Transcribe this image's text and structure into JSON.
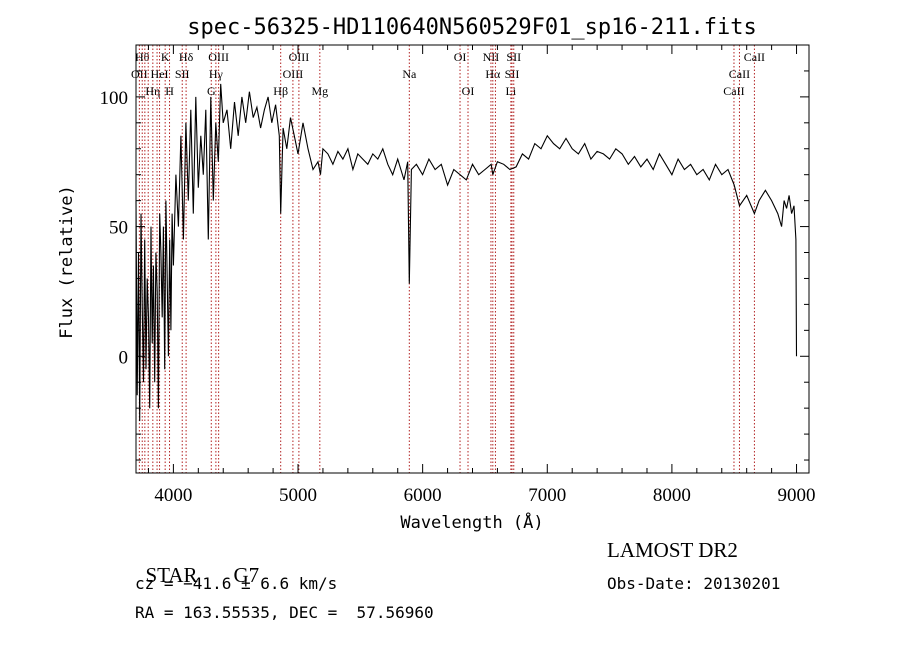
{
  "chart_data": {
    "type": "line",
    "title": "spec-56325-HD110640N560529F01_sp16-211.fits",
    "xlabel": "Wavelength (Å)",
    "ylabel": "Flux (relative)",
    "xlim": [
      3700,
      9100
    ],
    "ylim": [
      -45,
      120
    ],
    "x_ticks": [
      4000,
      5000,
      6000,
      7000,
      8000,
      9000
    ],
    "y_ticks": [
      0,
      50,
      100
    ],
    "grid": false,
    "legend": "none",
    "line_color": "#000000",
    "marker_color": "#b22222",
    "series": [
      {
        "x": [
          3700,
          3710,
          3720,
          3730,
          3740,
          3750,
          3760,
          3770,
          3780,
          3790,
          3800,
          3810,
          3820,
          3830,
          3840,
          3850,
          3860,
          3870,
          3880,
          3890,
          3900,
          3910,
          3920,
          3930,
          3940,
          3950,
          3960,
          3970,
          3980,
          3990,
          4000,
          4020,
          4040,
          4060,
          4080,
          4100,
          4120,
          4140,
          4160,
          4180,
          4200,
          4220,
          4240,
          4260,
          4280,
          4300,
          4320,
          4340,
          4360,
          4380,
          4400,
          4430,
          4460,
          4490,
          4520,
          4550,
          4580,
          4610,
          4640,
          4670,
          4700,
          4730,
          4760,
          4790,
          4820,
          4850,
          4861,
          4880,
          4910,
          4940,
          4970,
          5000,
          5040,
          5080,
          5120,
          5160,
          5180,
          5200,
          5240,
          5280,
          5320,
          5360,
          5400,
          5440,
          5480,
          5520,
          5560,
          5600,
          5640,
          5680,
          5720,
          5760,
          5800,
          5850,
          5880,
          5893,
          5910,
          5950,
          6000,
          6050,
          6100,
          6150,
          6200,
          6250,
          6300,
          6350,
          6400,
          6450,
          6500,
          6550,
          6563,
          6600,
          6650,
          6700,
          6750,
          6800,
          6850,
          6900,
          6950,
          7000,
          7050,
          7100,
          7150,
          7200,
          7250,
          7300,
          7350,
          7400,
          7450,
          7500,
          7550,
          7600,
          7650,
          7700,
          7750,
          7800,
          7850,
          7900,
          7950,
          8000,
          8050,
          8100,
          8150,
          8200,
          8250,
          8300,
          8350,
          8400,
          8450,
          8500,
          8542,
          8600,
          8662,
          8700,
          8750,
          8800,
          8850,
          8880,
          8900,
          8920,
          8940,
          8960,
          8980,
          8995,
          9000
        ],
        "y": [
          60,
          -15,
          40,
          -25,
          55,
          20,
          -10,
          45,
          -5,
          30,
          15,
          -20,
          50,
          5,
          35,
          -10,
          40,
          25,
          -20,
          55,
          40,
          15,
          50,
          -5,
          60,
          30,
          0,
          45,
          10,
          55,
          35,
          70,
          50,
          85,
          45,
          90,
          60,
          95,
          55,
          100,
          65,
          85,
          70,
          95,
          45,
          100,
          60,
          90,
          75,
          105,
          90,
          95,
          80,
          98,
          85,
          100,
          90,
          102,
          92,
          96,
          88,
          95,
          100,
          90,
          97,
          85,
          55,
          88,
          80,
          92,
          85,
          78,
          90,
          80,
          72,
          75,
          70,
          80,
          78,
          74,
          79,
          76,
          80,
          72,
          78,
          76,
          74,
          78,
          76,
          80,
          74,
          70,
          76,
          68,
          75,
          28,
          72,
          74,
          70,
          76,
          72,
          74,
          66,
          72,
          70,
          68,
          74,
          70,
          72,
          74,
          70,
          75,
          74,
          72,
          73,
          78,
          76,
          82,
          80,
          85,
          82,
          80,
          84,
          80,
          78,
          82,
          76,
          79,
          78,
          76,
          80,
          78,
          74,
          77,
          73,
          76,
          72,
          78,
          74,
          70,
          76,
          72,
          74,
          70,
          72,
          68,
          74,
          70,
          72,
          66,
          58,
          62,
          55,
          60,
          64,
          60,
          55,
          50,
          60,
          57,
          62,
          55,
          58,
          45,
          0
        ]
      }
    ],
    "lines": [
      {
        "x": 3727,
        "label": "OII",
        "row": 2
      },
      {
        "x": 3750,
        "label": "Hθ",
        "row": 1
      },
      {
        "x": 3771,
        "label": "",
        "row": 0
      },
      {
        "x": 3798,
        "label": "",
        "row": 0
      },
      {
        "x": 3835,
        "label": "Hη",
        "row": 3
      },
      {
        "x": 3869,
        "label": "",
        "row": 0
      },
      {
        "x": 3889,
        "label": "HeI",
        "row": 2
      },
      {
        "x": 3934,
        "label": "K",
        "row": 1
      },
      {
        "x": 3969,
        "label": "H",
        "row": 3
      },
      {
        "x": 4071,
        "label": "SII",
        "row": 2
      },
      {
        "x": 4102,
        "label": "Hδ",
        "row": 1
      },
      {
        "x": 4304,
        "label": "G",
        "row": 3
      },
      {
        "x": 4341,
        "label": "Hγ",
        "row": 2
      },
      {
        "x": 4363,
        "label": "OIII",
        "row": 1
      },
      {
        "x": 4861,
        "label": "Hβ",
        "row": 3
      },
      {
        "x": 4959,
        "label": "OIII",
        "row": 2
      },
      {
        "x": 5007,
        "label": "OIII",
        "row": 1
      },
      {
        "x": 5175,
        "label": "Mg",
        "row": 3
      },
      {
        "x": 5893,
        "label": "Na",
        "row": 2
      },
      {
        "x": 6300,
        "label": "OI",
        "row": 1
      },
      {
        "x": 6364,
        "label": "OI",
        "row": 3
      },
      {
        "x": 6548,
        "label": "NII",
        "row": 1
      },
      {
        "x": 6563,
        "label": "Hα",
        "row": 2
      },
      {
        "x": 6584,
        "label": "",
        "row": 0
      },
      {
        "x": 6708,
        "label": "Li",
        "row": 3
      },
      {
        "x": 6717,
        "label": "SII",
        "row": 2
      },
      {
        "x": 6731,
        "label": "SII",
        "row": 1
      },
      {
        "x": 8498,
        "label": "CaII",
        "row": 3
      },
      {
        "x": 8542,
        "label": "CaII",
        "row": 2
      },
      {
        "x": 8662,
        "label": "CaII",
        "row": 1
      }
    ]
  },
  "info": {
    "class": "STAR",
    "subclass": "G7",
    "survey": "LAMOST DR2",
    "cz": "cz = −41.6 ± 6.6 km/s",
    "obs_date": "Obs-Date: 20130201",
    "radec": "RA = 163.55535, DEC =  57.56960"
  }
}
